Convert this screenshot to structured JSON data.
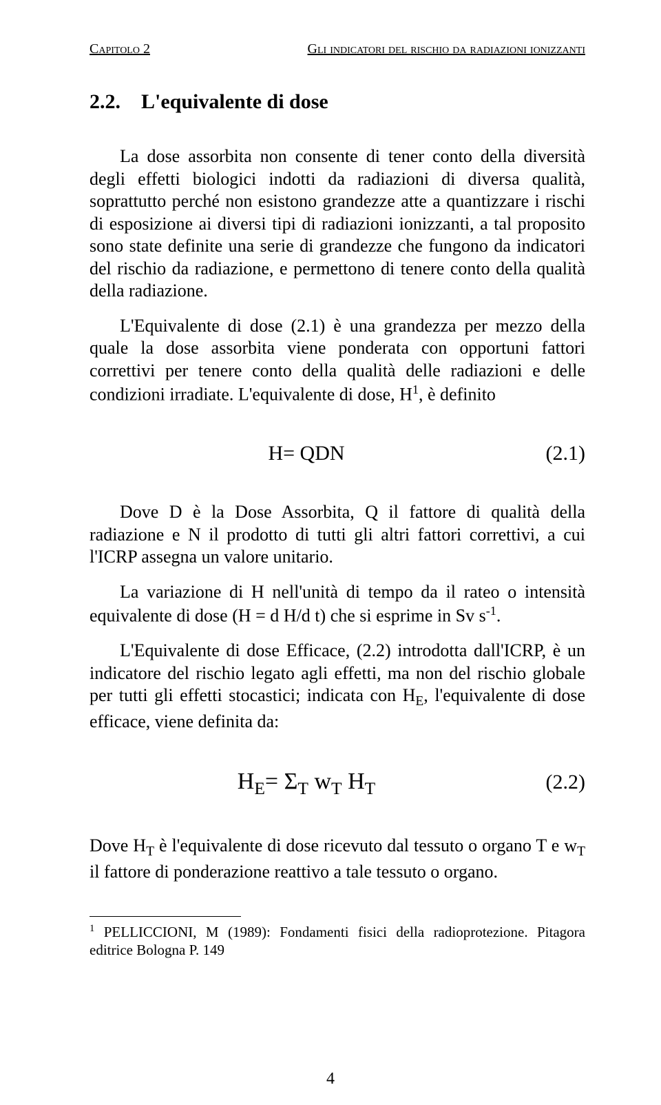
{
  "running_head": {
    "left": "Capitolo 2",
    "right": "Gli indicatori del rischio da radiazioni ionizzanti"
  },
  "section": {
    "number": "2.2.",
    "title": "L'equivalente di dose"
  },
  "paragraphs": {
    "p1": "La dose assorbita non consente di tener conto della diversità degli effetti biologici indotti da radiazioni di diversa qualità, soprattutto perché non esistono grandezze atte a quantizzare i rischi di esposizione ai diversi tipi di radiazioni ionizzanti, a tal proposito sono state definite una serie di grandezze che fungono da indicatori del rischio da radiazione, e permettono di tenere conto della qualità della radiazione.",
    "p2_a": "L'Equivalente di dose (2.1) è una grandezza per mezzo della quale la dose assorbita viene ponderata con opportuni fattori correttivi per tenere conto della qualità delle radiazioni  e delle condizioni irradiate. L'equivalente di dose, H",
    "p2_sup": "1",
    "p2_b": ", è definito",
    "p3": "Dove D è la Dose Assorbita, Q il fattore di qualità della radiazione e N il prodotto di tutti gli altri fattori correttivi, a cui l'ICRP assegna un valore unitario.",
    "p4_a": "La variazione di H nell'unità di tempo da il rateo o intensità equivalente di dose (H = d H/d t) che si esprime in Sv s",
    "p4_sup": "-1",
    "p4_b": ".",
    "p5_a": "L'Equivalente di dose Efficace, (2.2) introdotta dall'ICRP, è un indicatore del rischio legato agli effetti, ma non del rischio globale per tutti gli effetti stocastici; indicata con H",
    "p5_sub": "E",
    "p5_b": ", l'equivalente di dose efficace, viene definita da:",
    "p6_a": "Dove H",
    "p6_sub1": "T",
    "p6_b": " è l'equivalente di dose ricevuto dal tessuto o organo T e w",
    "p6_sub2": "T",
    "p6_c": " il fattore di ponderazione reattivo a tale tessuto o organo."
  },
  "equations": {
    "eq1": {
      "text": "H= QDN",
      "num": "(2.1)"
    },
    "eq2": {
      "lhs": "H",
      "lhs_sub": "E",
      "eq": "= Σ",
      "sigma_sub": "T",
      "w": " w",
      "w_sub": "T",
      "h2": " H",
      "h2_sub": "T",
      "num": "(2.2)"
    }
  },
  "footnote": {
    "marker": "1",
    "text": " PELLICCIONI, M (1989): Fondamenti fisici della radioprotezione. Pitagora editrice Bologna P. 149"
  },
  "page_number": "4"
}
